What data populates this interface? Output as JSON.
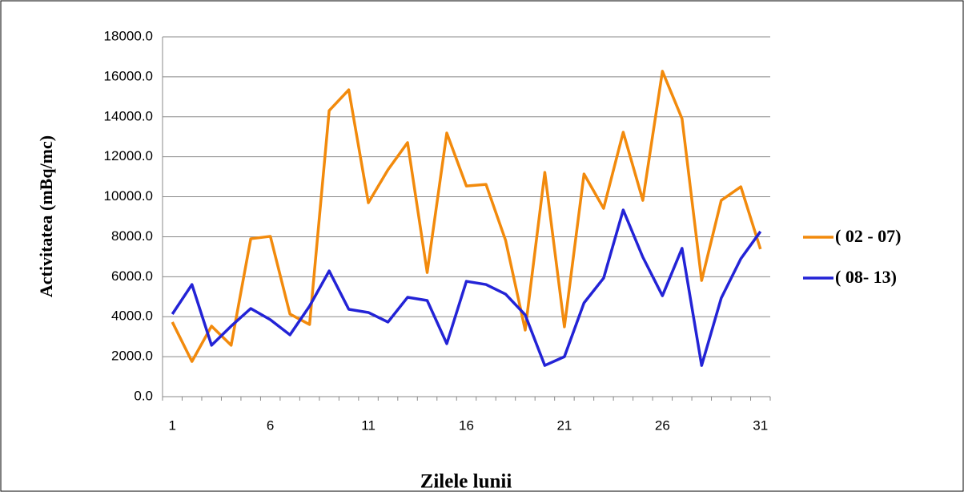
{
  "chart_data": {
    "type": "line",
    "x_label": "Zilele lunii",
    "y_label": "Activitatea (mBq/mc)",
    "categories": [
      "1",
      null,
      null,
      null,
      null,
      "6",
      null,
      null,
      null,
      null,
      "11",
      null,
      null,
      null,
      null,
      "16",
      null,
      null,
      null,
      null,
      "21",
      null,
      null,
      null,
      null,
      "26",
      null,
      null,
      null,
      null,
      "31"
    ],
    "series": [
      {
        "name": "( 02 - 07)",
        "color": "#f28a0c",
        "values": [
          3730,
          1760,
          3530,
          2570,
          7900,
          8020,
          4130,
          3610,
          14310,
          15350,
          9700,
          11350,
          12710,
          6210,
          13190,
          10540,
          10620,
          7820,
          3330,
          11220,
          3490,
          11140,
          9420,
          13230,
          9820,
          16280,
          13910,
          5810,
          9820,
          10500,
          7380
        ]
      },
      {
        "name": "( 08- 13)",
        "color": "#2323d6",
        "values": [
          4130,
          5610,
          2570,
          3530,
          4410,
          3850,
          3090,
          4530,
          6290,
          4370,
          4210,
          3730,
          4970,
          4810,
          2650,
          5770,
          5610,
          5130,
          4090,
          1560,
          2000,
          4690,
          5930,
          9340,
          6980,
          5050,
          7420,
          1560,
          4930,
          6900,
          8260
        ]
      }
    ],
    "ylim": [
      0,
      18000
    ],
    "yticks": [
      {
        "value": 0,
        "label": "0.0"
      },
      {
        "value": 2000,
        "label": "2000.0"
      },
      {
        "value": 4000,
        "label": "4000.0"
      },
      {
        "value": 6000,
        "label": "6000.0"
      },
      {
        "value": 8000,
        "label": "8000.0"
      },
      {
        "value": 10000,
        "label": "10000.0"
      },
      {
        "value": 12000,
        "label": "12000.0"
      },
      {
        "value": 14000,
        "label": "14000.0"
      },
      {
        "value": 16000,
        "label": "16000.0"
      },
      {
        "value": 18000,
        "label": "18000.0"
      }
    ],
    "grid": true,
    "legend": "right"
  }
}
